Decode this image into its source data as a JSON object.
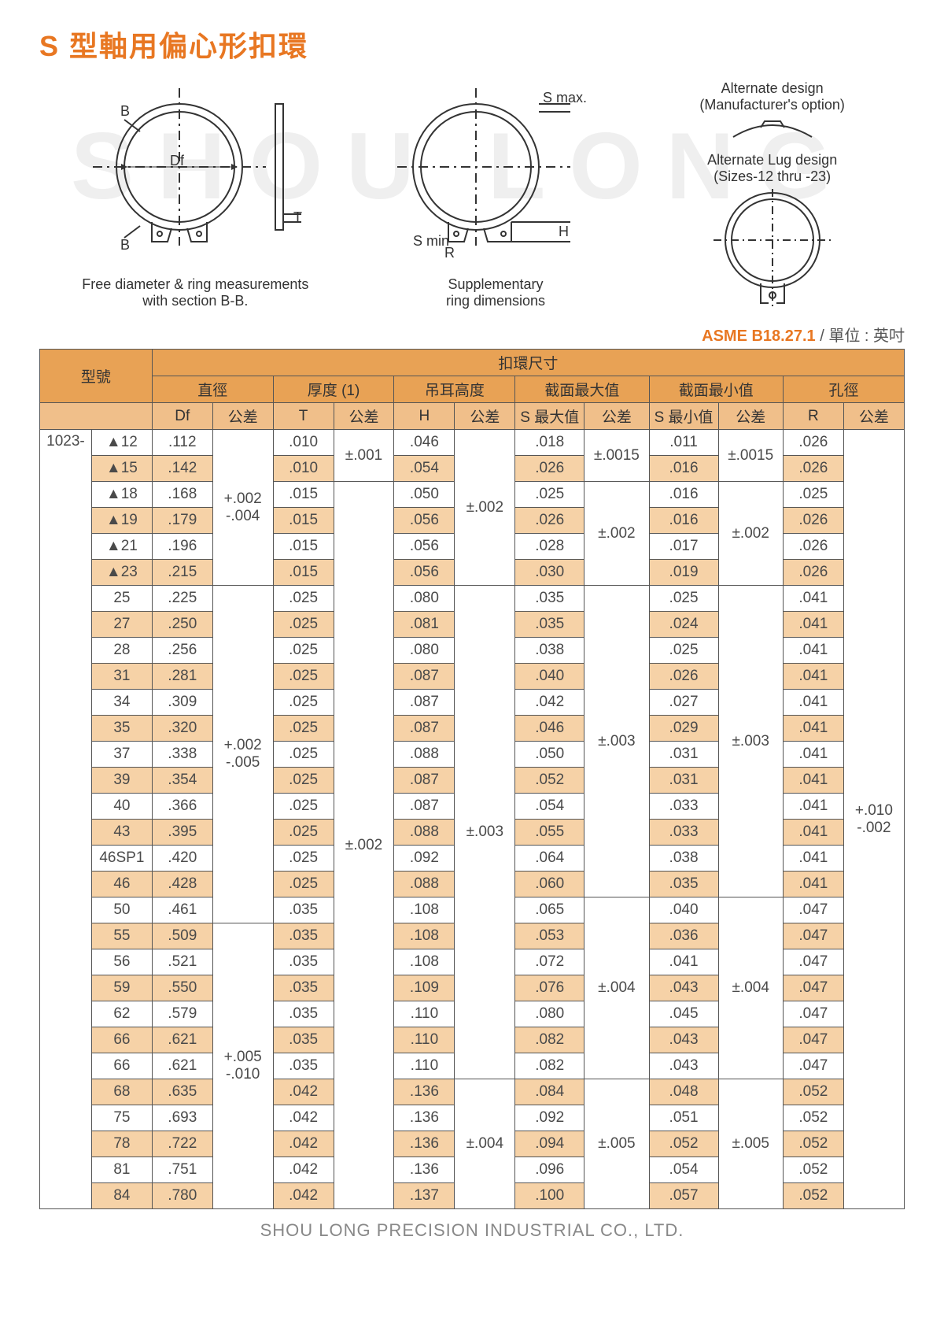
{
  "title": "S 型軸用偏心形扣環",
  "watermark": "SHOU LONG",
  "diagrams": {
    "left": {
      "labels": {
        "B_top": "B",
        "B_bot": "B",
        "Df": "Df",
        "T": "T"
      },
      "caption": "Free diameter & ring measurements\nwith section B-B."
    },
    "middle": {
      "labels": {
        "smax": "S max.",
        "smin": "S min",
        "R": "R",
        "H": "H"
      },
      "caption": "Supplementary\nring dimensions"
    },
    "right": {
      "labels": {
        "alt1": "Alternate design\n(Manufacturer's option)",
        "alt2": "Alternate Lug design\n(Sizes-12 thru -23)"
      }
    }
  },
  "standard": {
    "label": "ASME B18.27.1",
    "unit": " / 單位 : 英吋"
  },
  "table": {
    "top_header": "扣環尺寸",
    "group_headers": [
      "型號",
      "直徑",
      "厚度 (1)",
      "吊耳高度",
      "截面最大值",
      "截面最小值",
      "孔徑"
    ],
    "sub_headers": [
      "Df",
      "公差",
      "T",
      "公差",
      "H",
      "公差",
      "S 最大值",
      "公差",
      "S 最小值",
      "公差",
      "R",
      "公差"
    ],
    "series": "1023-",
    "tol_df_1": "+.002\n-.004",
    "tol_df_2": "+.002\n-.005",
    "tol_df_3": "+.005\n-.010",
    "tol_t_1": "±.001",
    "tol_t_2": "±.002",
    "tol_h_1": "±.002",
    "tol_h_2": "±.003",
    "tol_h_3": "±.004",
    "tol_smax_1": "±.0015",
    "tol_smax_2": "±.002",
    "tol_smax_3": "±.003",
    "tol_smax_4": "±.004",
    "tol_smax_5": "±.005",
    "tol_smin_1": "±.0015",
    "tol_smin_2": "±.002",
    "tol_smin_3": "±.003",
    "tol_smin_4": "±.004",
    "tol_smin_5": "±.005",
    "tol_r": "+.010\n-.002",
    "rows": [
      {
        "n": "▲12",
        "df": ".112",
        "t": ".010",
        "h": ".046",
        "sm": ".018",
        "sn": ".011",
        "r": ".026"
      },
      {
        "n": "▲15",
        "df": ".142",
        "t": ".010",
        "h": ".054",
        "sm": ".026",
        "sn": ".016",
        "r": ".026"
      },
      {
        "n": "▲18",
        "df": ".168",
        "t": ".015",
        "h": ".050",
        "sm": ".025",
        "sn": ".016",
        "r": ".025"
      },
      {
        "n": "▲19",
        "df": ".179",
        "t": ".015",
        "h": ".056",
        "sm": ".026",
        "sn": ".016",
        "r": ".026"
      },
      {
        "n": "▲21",
        "df": ".196",
        "t": ".015",
        "h": ".056",
        "sm": ".028",
        "sn": ".017",
        "r": ".026"
      },
      {
        "n": "▲23",
        "df": ".215",
        "t": ".015",
        "h": ".056",
        "sm": ".030",
        "sn": ".019",
        "r": ".026"
      },
      {
        "n": "25",
        "df": ".225",
        "t": ".025",
        "h": ".080",
        "sm": ".035",
        "sn": ".025",
        "r": ".041"
      },
      {
        "n": "27",
        "df": ".250",
        "t": ".025",
        "h": ".081",
        "sm": ".035",
        "sn": ".024",
        "r": ".041"
      },
      {
        "n": "28",
        "df": ".256",
        "t": ".025",
        "h": ".080",
        "sm": ".038",
        "sn": ".025",
        "r": ".041"
      },
      {
        "n": "31",
        "df": ".281",
        "t": ".025",
        "h": ".087",
        "sm": ".040",
        "sn": ".026",
        "r": ".041"
      },
      {
        "n": "34",
        "df": ".309",
        "t": ".025",
        "h": ".087",
        "sm": ".042",
        "sn": ".027",
        "r": ".041"
      },
      {
        "n": "35",
        "df": ".320",
        "t": ".025",
        "h": ".087",
        "sm": ".046",
        "sn": ".029",
        "r": ".041"
      },
      {
        "n": "37",
        "df": ".338",
        "t": ".025",
        "h": ".088",
        "sm": ".050",
        "sn": ".031",
        "r": ".041"
      },
      {
        "n": "39",
        "df": ".354",
        "t": ".025",
        "h": ".087",
        "sm": ".052",
        "sn": ".031",
        "r": ".041"
      },
      {
        "n": "40",
        "df": ".366",
        "t": ".025",
        "h": ".087",
        "sm": ".054",
        "sn": ".033",
        "r": ".041"
      },
      {
        "n": "43",
        "df": ".395",
        "t": ".025",
        "h": ".088",
        "sm": ".055",
        "sn": ".033",
        "r": ".041"
      },
      {
        "n": "46SP1",
        "df": ".420",
        "t": ".025",
        "h": ".092",
        "sm": ".064",
        "sn": ".038",
        "r": ".041"
      },
      {
        "n": "46",
        "df": ".428",
        "t": ".025",
        "h": ".088",
        "sm": ".060",
        "sn": ".035",
        "r": ".041"
      },
      {
        "n": "50",
        "df": ".461",
        "t": ".035",
        "h": ".108",
        "sm": ".065",
        "sn": ".040",
        "r": ".047"
      },
      {
        "n": "55",
        "df": ".509",
        "t": ".035",
        "h": ".108",
        "sm": ".053",
        "sn": ".036",
        "r": ".047"
      },
      {
        "n": "56",
        "df": ".521",
        "t": ".035",
        "h": ".108",
        "sm": ".072",
        "sn": ".041",
        "r": ".047"
      },
      {
        "n": "59",
        "df": ".550",
        "t": ".035",
        "h": ".109",
        "sm": ".076",
        "sn": ".043",
        "r": ".047"
      },
      {
        "n": "62",
        "df": ".579",
        "t": ".035",
        "h": ".110",
        "sm": ".080",
        "sn": ".045",
        "r": ".047"
      },
      {
        "n": "66",
        "df": ".621",
        "t": ".035",
        "h": ".110",
        "sm": ".082",
        "sn": ".043",
        "r": ".047"
      },
      {
        "n": "66",
        "df": ".621",
        "t": ".035",
        "h": ".110",
        "sm": ".082",
        "sn": ".043",
        "r": ".047"
      },
      {
        "n": "68",
        "df": ".635",
        "t": ".042",
        "h": ".136",
        "sm": ".084",
        "sn": ".048",
        "r": ".052"
      },
      {
        "n": "75",
        "df": ".693",
        "t": ".042",
        "h": ".136",
        "sm": ".092",
        "sn": ".051",
        "r": ".052"
      },
      {
        "n": "78",
        "df": ".722",
        "t": ".042",
        "h": ".136",
        "sm": ".094",
        "sn": ".052",
        "r": ".052"
      },
      {
        "n": "81",
        "df": ".751",
        "t": ".042",
        "h": ".136",
        "sm": ".096",
        "sn": ".054",
        "r": ".052"
      },
      {
        "n": "84",
        "df": ".780",
        "t": ".042",
        "h": ".137",
        "sm": ".100",
        "sn": ".057",
        "r": ".052"
      }
    ]
  },
  "footer": "SHOU LONG PRECISION INDUSTRIAL CO., LTD.",
  "colors": {
    "accent": "#e87722",
    "header_bg": "#e8a255",
    "sub_bg": "#f0bf8a",
    "stripe": "#f6d2a7"
  }
}
